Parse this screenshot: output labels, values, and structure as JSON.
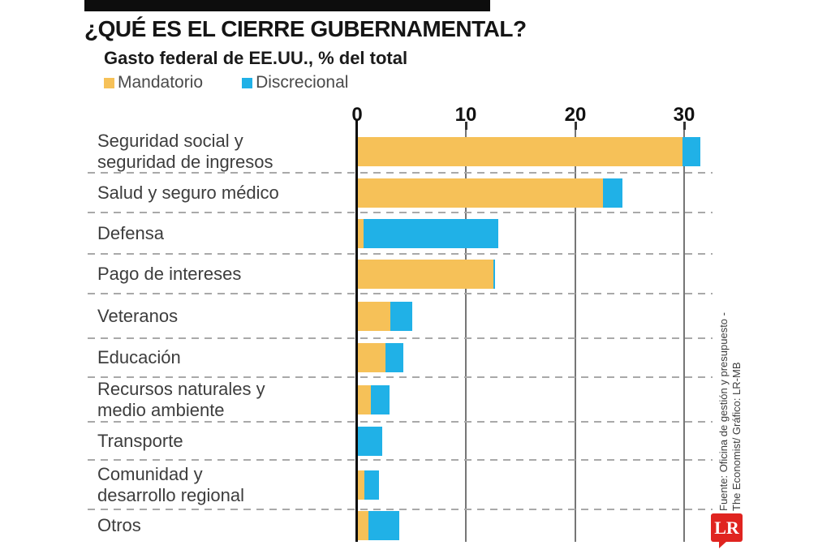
{
  "header": {
    "title": "¿QUÉ ES EL CIERRE GUBERNAMENTAL?",
    "subtitle": "Gasto federal de EE.UU., % del total"
  },
  "legend": [
    {
      "label": "Mandatorio",
      "color": "#F6C158"
    },
    {
      "label": "Discrecional",
      "color": "#20B1E7"
    }
  ],
  "axis": {
    "ticks": [
      "0",
      "10",
      "20",
      "30"
    ]
  },
  "chart_data": {
    "type": "bar",
    "orientation": "horizontal",
    "stacked": true,
    "title": "¿QUÉ ES EL CIERRE GUBERNAMENTAL?",
    "subtitle": "Gasto federal de EE.UU., % del total",
    "xlabel": "% del total",
    "xlim": [
      0,
      32
    ],
    "grid": "vertical solid at 10/20/30, dashed row separators",
    "legend_position": "top-left",
    "categories": [
      "Seguridad social y\nseguridad de ingresos",
      "Salud y seguro médico",
      "Defensa",
      "Pago de intereses",
      "Veteranos",
      "Educación",
      "Recursos naturales y\nmedio ambiente",
      "Transporte",
      "Comunidad y\ndesarrollo regional",
      "Otros"
    ],
    "series": [
      {
        "name": "Mandatorio",
        "color": "#F6C158",
        "values": [
          29.8,
          22.5,
          0.5,
          12.4,
          3.0,
          2.5,
          1.2,
          0,
          0.6,
          1.0
        ]
      },
      {
        "name": "Discrecional",
        "color": "#20B1E7",
        "values": [
          1.6,
          1.8,
          12.4,
          0.2,
          2.0,
          1.7,
          1.7,
          2.2,
          1.3,
          2.8
        ]
      }
    ]
  },
  "source": {
    "line1": "Fuente: Oficina de gestión y presupuesto -",
    "line2": "The Economist/ Gráfico: LR-MB"
  },
  "logo": {
    "text": "LR",
    "color": "#E02420"
  }
}
